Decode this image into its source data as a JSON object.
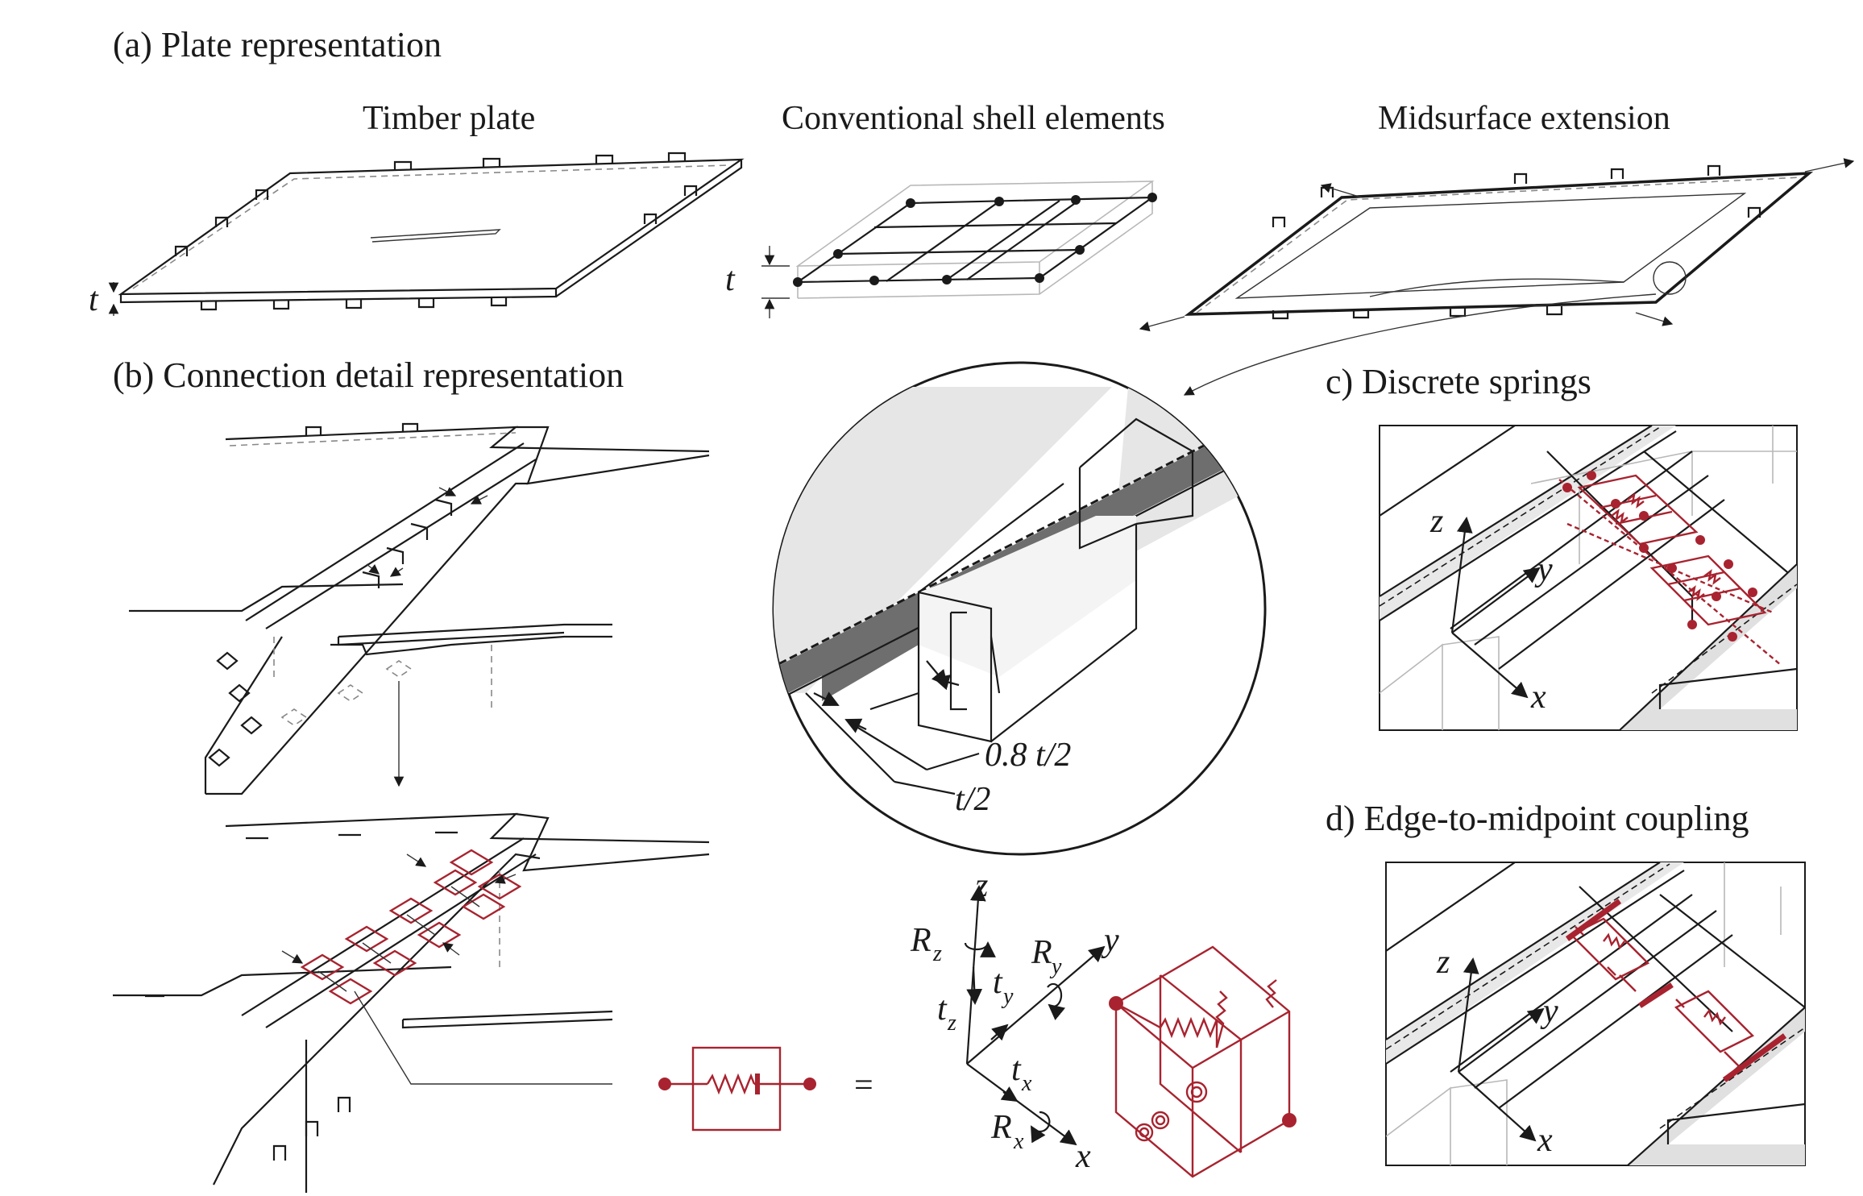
{
  "panels": {
    "a_label": "(a) Plate representation",
    "a_sub_timber": "Timber plate",
    "a_sub_shell": "Conventional shell elements",
    "a_sub_mid": "Midsurface extension",
    "b_label": "(b) Connection detail representation",
    "c_label": "c) Discrete springs",
    "d_label": "d) Edge-to-midpoint coupling"
  },
  "symbols": {
    "t": "t",
    "dim_08": "0.8 t/2",
    "dim_half": "t/2",
    "z": "z",
    "y": "y",
    "x": "x",
    "Rz": "R",
    "Rz_sub": "z",
    "Ry": "R",
    "Ry_sub": "y",
    "Rx": "R",
    "Rx_sub": "x",
    "tz": "t",
    "tz_sub": "z",
    "ty": "t",
    "ty_sub": "y",
    "tx": "t",
    "tx_sub": "x",
    "equals": "="
  },
  "colors": {
    "line": "#1a1a1a",
    "spring": "#a8232f",
    "grey_fill": "#e6e6e6",
    "dark_fill": "#6e6e6e"
  }
}
